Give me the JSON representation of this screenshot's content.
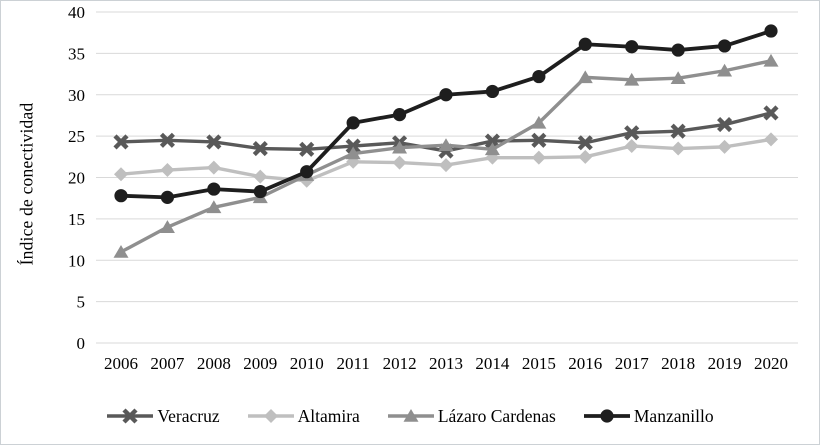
{
  "figure": {
    "background": "#ffffff",
    "border_color": "#ccd1d5"
  },
  "chart_data": {
    "type": "line",
    "title": "",
    "ylabel": "Índice de conectividad",
    "xlabel": "",
    "x": [
      2006,
      2007,
      2008,
      2009,
      2010,
      2011,
      2012,
      2013,
      2014,
      2015,
      2016,
      2017,
      2018,
      2019,
      2020
    ],
    "ylim": [
      0,
      40
    ],
    "yticks": [
      0,
      5,
      10,
      15,
      20,
      25,
      30,
      35,
      40
    ],
    "grid": "horizontal",
    "grid_color": "#d9d9d9",
    "axis_text_color": "#000000",
    "legend_position": "bottom",
    "series": [
      {
        "name": "Veracruz",
        "marker": "x",
        "color": "#595959",
        "line_width": 3.4,
        "values": [
          24.3,
          24.5,
          24.3,
          23.5,
          23.4,
          23.8,
          24.2,
          23.2,
          24.4,
          24.5,
          24.2,
          25.4,
          25.6,
          26.4,
          27.8
        ]
      },
      {
        "name": "Altamira",
        "marker": "diamond",
        "color": "#bfbfbf",
        "line_width": 3.4,
        "values": [
          20.4,
          20.9,
          21.2,
          20.1,
          19.6,
          21.9,
          21.8,
          21.5,
          22.4,
          22.4,
          22.5,
          23.8,
          23.5,
          23.7,
          24.6
        ]
      },
      {
        "name": "Lázaro Cardenas",
        "marker": "triangle",
        "color": "#8f8f8f",
        "line_width": 3.4,
        "values": [
          11.0,
          14.0,
          16.4,
          17.6,
          20.3,
          22.9,
          23.6,
          23.9,
          23.4,
          26.6,
          32.1,
          31.8,
          32.0,
          32.9,
          34.1
        ]
      },
      {
        "name": "Manzanillo",
        "marker": "circle",
        "color": "#1e1e1e",
        "line_width": 3.8,
        "values": [
          17.8,
          17.6,
          18.6,
          18.3,
          20.7,
          26.6,
          27.6,
          30.0,
          30.4,
          32.2,
          36.1,
          35.8,
          35.4,
          35.9,
          37.7
        ]
      }
    ]
  }
}
